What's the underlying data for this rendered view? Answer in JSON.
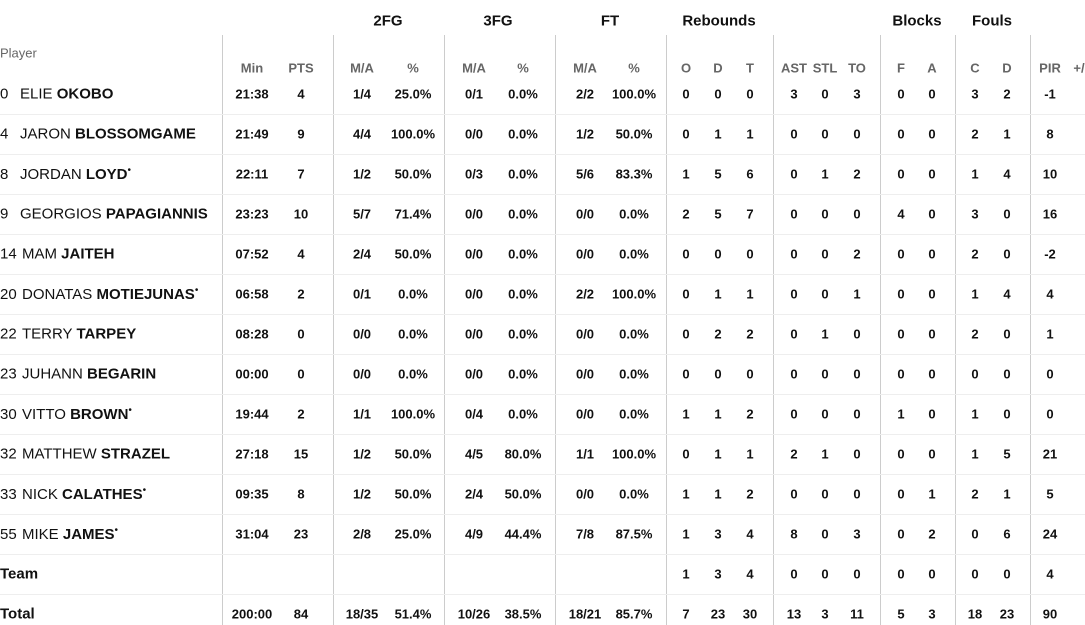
{
  "table": {
    "group_headers": [
      "2FG",
      "3FG",
      "FT",
      "Rebounds",
      "Blocks",
      "Fouls"
    ],
    "columns": [
      "Player",
      "Min",
      "PTS",
      "M/A",
      "%",
      "M/A",
      "%",
      "M/A",
      "%",
      "O",
      "D",
      "T",
      "AST",
      "STL",
      "TO",
      "F",
      "A",
      "C",
      "D",
      "PIR",
      "+/"
    ],
    "starter_mark": "•",
    "rows": [
      {
        "number": "0",
        "first": "ELIE",
        "last": "OKOBO",
        "starter": false,
        "cells": [
          "21:38",
          "4",
          "1/4",
          "25.0%",
          "0/1",
          "0.0%",
          "2/2",
          "100.0%",
          "0",
          "0",
          "0",
          "3",
          "0",
          "3",
          "0",
          "0",
          "3",
          "2",
          "-1"
        ]
      },
      {
        "number": "4",
        "first": "JARON",
        "last": "BLOSSOMGAME",
        "starter": false,
        "cells": [
          "21:49",
          "9",
          "4/4",
          "100.0%",
          "0/0",
          "0.0%",
          "1/2",
          "50.0%",
          "0",
          "1",
          "1",
          "0",
          "0",
          "0",
          "0",
          "0",
          "2",
          "1",
          "8"
        ]
      },
      {
        "number": "8",
        "first": "JORDAN",
        "last": "LOYD",
        "starter": true,
        "cells": [
          "22:11",
          "7",
          "1/2",
          "50.0%",
          "0/3",
          "0.0%",
          "5/6",
          "83.3%",
          "1",
          "5",
          "6",
          "0",
          "1",
          "2",
          "0",
          "0",
          "1",
          "4",
          "10"
        ]
      },
      {
        "number": "9",
        "first": "GEORGIOS",
        "last": "PAPAGIANNIS",
        "starter": false,
        "cells": [
          "23:23",
          "10",
          "5/7",
          "71.4%",
          "0/0",
          "0.0%",
          "0/0",
          "0.0%",
          "2",
          "5",
          "7",
          "0",
          "0",
          "0",
          "4",
          "0",
          "3",
          "0",
          "16"
        ]
      },
      {
        "number": "14",
        "first": "MAM",
        "last": "JAITEH",
        "starter": false,
        "cells": [
          "07:52",
          "4",
          "2/4",
          "50.0%",
          "0/0",
          "0.0%",
          "0/0",
          "0.0%",
          "0",
          "0",
          "0",
          "0",
          "0",
          "2",
          "0",
          "0",
          "2",
          "0",
          "-2"
        ]
      },
      {
        "number": "20",
        "first": "DONATAS",
        "last": "MOTIEJUNAS",
        "starter": true,
        "cells": [
          "06:58",
          "2",
          "0/1",
          "0.0%",
          "0/0",
          "0.0%",
          "2/2",
          "100.0%",
          "0",
          "1",
          "1",
          "0",
          "0",
          "1",
          "0",
          "0",
          "1",
          "4",
          "4"
        ]
      },
      {
        "number": "22",
        "first": "TERRY",
        "last": "TARPEY",
        "starter": false,
        "cells": [
          "08:28",
          "0",
          "0/0",
          "0.0%",
          "0/0",
          "0.0%",
          "0/0",
          "0.0%",
          "0",
          "2",
          "2",
          "0",
          "1",
          "0",
          "0",
          "0",
          "2",
          "0",
          "1"
        ]
      },
      {
        "number": "23",
        "first": "JUHANN",
        "last": "BEGARIN",
        "starter": false,
        "cells": [
          "00:00",
          "0",
          "0/0",
          "0.0%",
          "0/0",
          "0.0%",
          "0/0",
          "0.0%",
          "0",
          "0",
          "0",
          "0",
          "0",
          "0",
          "0",
          "0",
          "0",
          "0",
          "0"
        ]
      },
      {
        "number": "30",
        "first": "VITTO",
        "last": "BROWN",
        "starter": true,
        "cells": [
          "19:44",
          "2",
          "1/1",
          "100.0%",
          "0/4",
          "0.0%",
          "0/0",
          "0.0%",
          "1",
          "1",
          "2",
          "0",
          "0",
          "0",
          "1",
          "0",
          "1",
          "0",
          "0"
        ]
      },
      {
        "number": "32",
        "first": "MATTHEW",
        "last": "STRAZEL",
        "starter": false,
        "cells": [
          "27:18",
          "15",
          "1/2",
          "50.0%",
          "4/5",
          "80.0%",
          "1/1",
          "100.0%",
          "0",
          "1",
          "1",
          "2",
          "1",
          "0",
          "0",
          "0",
          "1",
          "5",
          "21"
        ]
      },
      {
        "number": "33",
        "first": "NICK",
        "last": "CALATHES",
        "starter": true,
        "cells": [
          "09:35",
          "8",
          "1/2",
          "50.0%",
          "2/4",
          "50.0%",
          "0/0",
          "0.0%",
          "1",
          "1",
          "2",
          "0",
          "0",
          "0",
          "0",
          "1",
          "2",
          "1",
          "5"
        ]
      },
      {
        "number": "55",
        "first": "MIKE",
        "last": "JAMES",
        "starter": true,
        "cells": [
          "31:04",
          "23",
          "2/8",
          "25.0%",
          "4/9",
          "44.4%",
          "7/8",
          "87.5%",
          "1",
          "3",
          "4",
          "8",
          "0",
          "3",
          "0",
          "2",
          "0",
          "6",
          "24"
        ]
      }
    ],
    "team": {
      "label": "Team",
      "cells": [
        null,
        null,
        null,
        null,
        null,
        null,
        null,
        null,
        "1",
        "3",
        "4",
        "0",
        "0",
        "0",
        "0",
        "0",
        "0",
        "0",
        "4"
      ]
    },
    "total": {
      "label": "Total",
      "cells": [
        "200:00",
        "84",
        "18/35",
        "51.4%",
        "10/26",
        "38.5%",
        "18/21",
        "85.7%",
        "7",
        "23",
        "30",
        "13",
        "3",
        "11",
        "5",
        "3",
        "18",
        "23",
        "90"
      ]
    }
  }
}
